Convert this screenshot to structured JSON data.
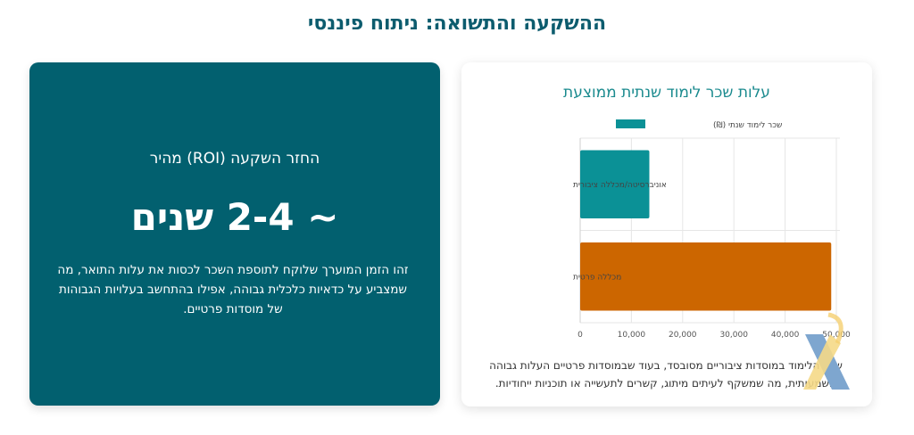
{
  "page": {
    "title": "ההשקעה והתשואה: ניתוח פיננסי"
  },
  "roi_card": {
    "heading": "החזר השקעה (ROI) מהיר",
    "value": "~ 2-4 שנים",
    "description": "זהו הזמן המוערך שלוקח לתוספת השכר לכסות את עלות התואר, מה שמצביע על כדאיות כלכלית גבוהה, אפילו בהתחשב בעלויות הגבוהות של מוסדות פרטיים."
  },
  "chart_card": {
    "note": "שכר הלימוד במוסדות ציבוריים מסובסד, בעוד שבמוסדות פרטיים העלות גבוהה משמעותית, מה שמשקף לעיתים מיתוג, קשרים לתעשייה או תוכניות ייחודיות."
  },
  "chart_data": {
    "type": "bar",
    "orientation": "horizontal",
    "title": "עלות שכר לימוד שנתית ממוצעת",
    "categories": [
      "אוניברסיטה/מכללה ציבורית",
      "מכללה פרטית"
    ],
    "series": [
      {
        "name": "שכר לימוד שנתי (₪)",
        "values": [
          13500,
          49000
        ],
        "colors": [
          "#0b9196",
          "#cc6600"
        ]
      }
    ],
    "xlim": [
      0,
      50000
    ],
    "x_ticks": [
      0,
      10000,
      20000,
      30000,
      40000,
      50000
    ],
    "x_tick_labels": [
      "0",
      "10,000",
      "20,000",
      "30,000",
      "40,000",
      "50,000"
    ],
    "legend": "top",
    "grid": true
  },
  "colors": {
    "title": "#0c5c6e",
    "card_teal": "#02606f",
    "chart_title": "#1a8a8e"
  }
}
